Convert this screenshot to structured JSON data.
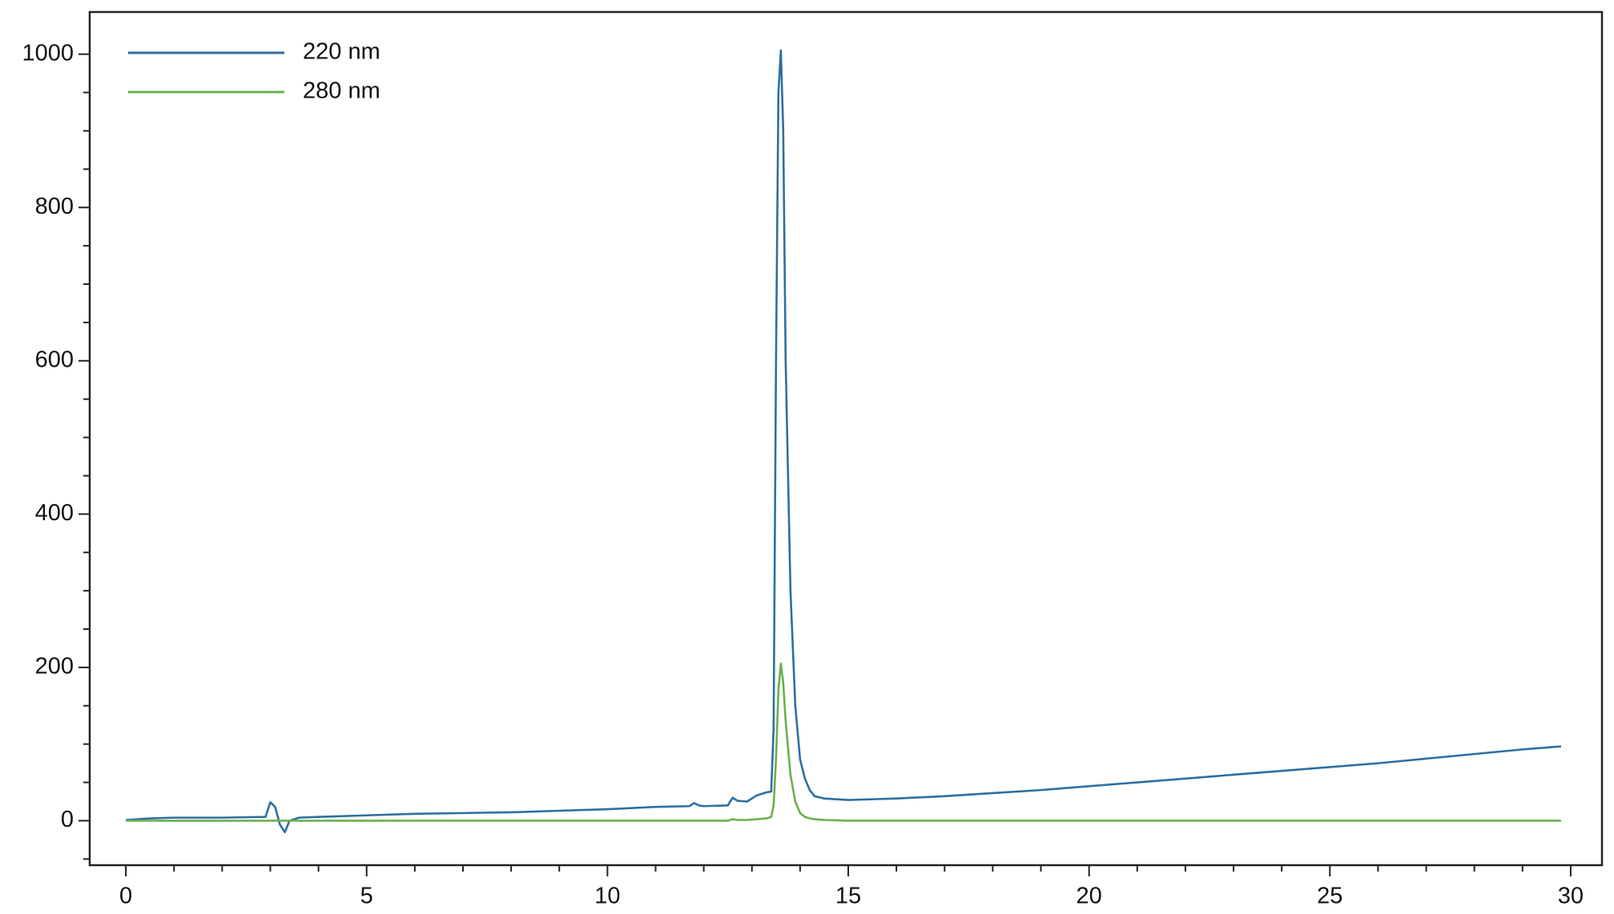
{
  "chart_data": {
    "type": "line",
    "x": [
      0,
      0.5,
      1,
      2,
      2.9,
      3.0,
      3.1,
      3.2,
      3.3,
      3.4,
      3.6,
      4,
      5,
      6,
      7,
      8,
      9,
      10,
      11,
      11.7,
      11.8,
      11.9,
      12.0,
      12.5,
      12.6,
      12.7,
      12.9,
      13.1,
      13.3,
      13.4,
      13.45,
      13.5,
      13.55,
      13.6,
      13.65,
      13.7,
      13.8,
      13.9,
      14.0,
      14.1,
      14.2,
      14.3,
      14.5,
      15,
      15.5,
      16,
      17,
      18,
      19,
      20,
      21,
      22,
      23,
      24,
      25,
      26,
      27,
      28,
      29,
      29.8
    ],
    "series": [
      {
        "name": "220 nm",
        "color": "#2e6fa0",
        "values": [
          1,
          3,
          4,
          4,
          5,
          24,
          18,
          -5,
          -15,
          0,
          4,
          5,
          7,
          9,
          10,
          11,
          13,
          15,
          18,
          19,
          23,
          20,
          19,
          20,
          30,
          26,
          25,
          33,
          37,
          38,
          120,
          600,
          950,
          1005,
          900,
          600,
          300,
          150,
          80,
          55,
          40,
          32,
          29,
          27,
          28,
          29,
          32,
          36,
          40,
          45,
          50,
          55,
          60,
          65,
          70,
          75,
          81,
          87,
          93,
          97
        ]
      },
      {
        "name": "280 nm",
        "color": "#6ab04c",
        "values": [
          0,
          0,
          0,
          0,
          0,
          0,
          0,
          0,
          0,
          0,
          0,
          0,
          0,
          0,
          0,
          0,
          0,
          0,
          0,
          0,
          0,
          0,
          0,
          0,
          2,
          1,
          1,
          2,
          3,
          5,
          20,
          80,
          170,
          205,
          180,
          130,
          60,
          25,
          10,
          5,
          3,
          2,
          1,
          0,
          0,
          0,
          0,
          0,
          0,
          0,
          0,
          0,
          0,
          0,
          0,
          0,
          0,
          0,
          0,
          0
        ]
      }
    ],
    "xlim": [
      -0.75,
      30.65
    ],
    "ylim": [
      -58,
      1055
    ],
    "xticks": [
      0,
      5,
      10,
      15,
      20,
      25,
      30
    ],
    "yticks": [
      0,
      200,
      400,
      600,
      800,
      1000
    ],
    "xminorticks": [
      1,
      2,
      3,
      4,
      6,
      7,
      8,
      9,
      11,
      12,
      13,
      14,
      16,
      17,
      18,
      19,
      21,
      22,
      23,
      24,
      26,
      27,
      28,
      29
    ],
    "yminorticks": [
      -50,
      50,
      100,
      150,
      250,
      300,
      350,
      450,
      500,
      550,
      650,
      700,
      750,
      850,
      900,
      950
    ],
    "legend": "upper left",
    "grid": false
  }
}
